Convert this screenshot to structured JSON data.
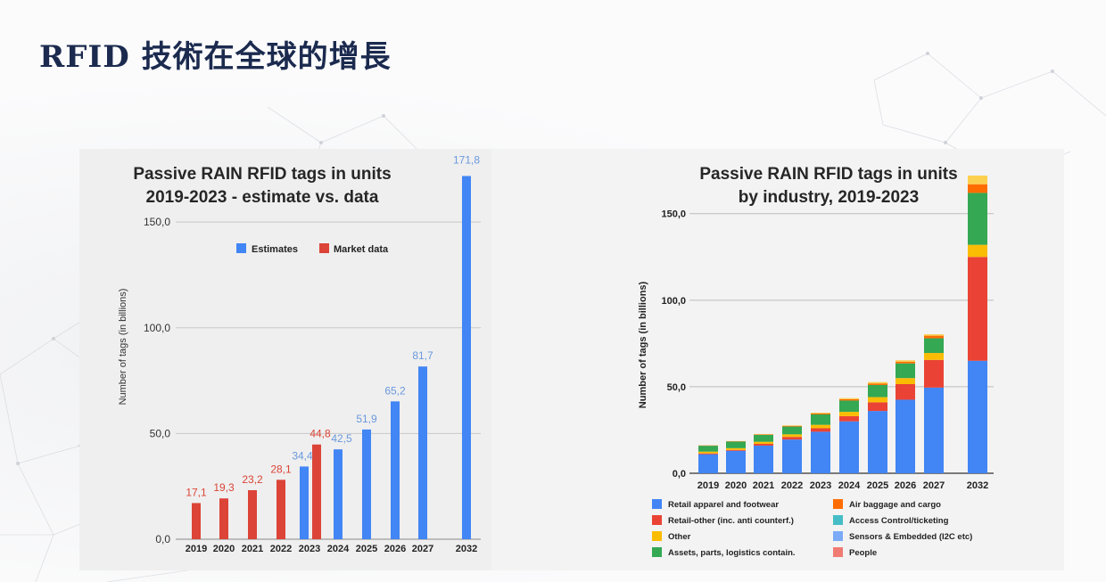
{
  "page": {
    "title": "RFID 技術在全球的增長"
  },
  "colors": {
    "estimate": "#4285f4",
    "market": "#db4437",
    "grid": "#c8c8c8",
    "title_navy": "#1b2a4e"
  },
  "chart_data": [
    {
      "type": "bar",
      "title_line1": "Passive RAIN RFID tags in units",
      "title_line2": "2019-2023 - estimate vs. data",
      "ylabel": "Number of tags  (in billions)",
      "ylim": [
        0,
        172
      ],
      "yticks": [
        "0,0",
        "50,0",
        "100,0",
        "150,0"
      ],
      "ytick_values": [
        0,
        50,
        100,
        150
      ],
      "categories": [
        "2019",
        "2020",
        "2021",
        "2022",
        "2023",
        "2024",
        "2025",
        "2026",
        "2027",
        "2032"
      ],
      "legend_position": "top",
      "legend": [
        "Estimates",
        "Market data"
      ],
      "series": [
        {
          "name": "Estimates",
          "color": "#4285f4",
          "values": [
            null,
            null,
            null,
            null,
            34.4,
            42.5,
            51.9,
            65.2,
            81.7,
            171.8
          ],
          "labels": [
            "",
            "",
            "",
            "",
            "34,4",
            "42,5",
            "51,9",
            "65,2",
            "81,7",
            "171,8"
          ]
        },
        {
          "name": "Market data",
          "color": "#db4437",
          "values": [
            17.1,
            19.3,
            23.2,
            28.1,
            44.8,
            null,
            null,
            null,
            null,
            null
          ],
          "labels": [
            "17,1",
            "19,3",
            "23,2",
            "28,1",
            "44,8",
            "",
            "",
            "",
            "",
            ""
          ]
        }
      ]
    },
    {
      "type": "bar",
      "stacked": true,
      "title_line1": "Passive RAIN RFID tags in units",
      "title_line2": "by industry, 2019-2023",
      "ylabel": "Number of tags (in billions)",
      "ylim": [
        0,
        172
      ],
      "yticks": [
        "0,0",
        "50,0",
        "100,0",
        "150,0"
      ],
      "ytick_values": [
        0,
        50,
        100,
        150
      ],
      "categories": [
        "2019",
        "2020",
        "2021",
        "2022",
        "2023",
        "2024",
        "2025",
        "2026",
        "2027",
        "2032"
      ],
      "legend_position": "bottom",
      "series": [
        {
          "name": "Retail apparel and footwear",
          "color": "#4285f4",
          "values": [
            11,
            13,
            16,
            19.5,
            24,
            30,
            36,
            42.5,
            49.5,
            65
          ]
        },
        {
          "name": "Retail-other (inc. anti counterf.)",
          "color": "#ea4335",
          "values": [
            0.5,
            0.5,
            1,
            1.5,
            2,
            3,
            5,
            9,
            16,
            60
          ]
        },
        {
          "name": "Other",
          "color": "#fbbc04",
          "values": [
            1,
            1,
            1.2,
            1.5,
            2,
            2.5,
            3,
            3.5,
            4,
            7
          ]
        },
        {
          "name": "Assets, parts, logistics contain.",
          "color": "#34a853",
          "values": [
            3.4,
            3.8,
            4,
            4.5,
            6,
            6.5,
            7,
            8.5,
            8.5,
            30
          ]
        },
        {
          "name": "Air baggage and cargo",
          "color": "#ff6d01",
          "values": [
            0.2,
            0.2,
            0.3,
            0.4,
            0.6,
            0.8,
            0.9,
            1,
            1.5,
            5
          ]
        },
        {
          "name": "Access Control/ticketing",
          "color": "#46bdc6",
          "values": [
            0,
            0,
            0,
            0,
            0,
            0,
            0,
            0,
            0,
            0
          ]
        },
        {
          "name": "Sensors & Embedded (I2C etc)",
          "color": "#7baaf7",
          "values": [
            0,
            0,
            0,
            0,
            0,
            0,
            0,
            0,
            0,
            0
          ]
        },
        {
          "name": "People",
          "color": "#f07b72",
          "values": [
            0,
            0,
            0,
            0,
            0,
            0,
            0,
            0,
            0,
            0
          ]
        },
        {
          "name": "",
          "color": "#fcd04f",
          "values": [
            0.1,
            0.1,
            0.2,
            0.3,
            0.4,
            0.6,
            0.8,
            0.8,
            0.8,
            5
          ]
        }
      ]
    }
  ]
}
